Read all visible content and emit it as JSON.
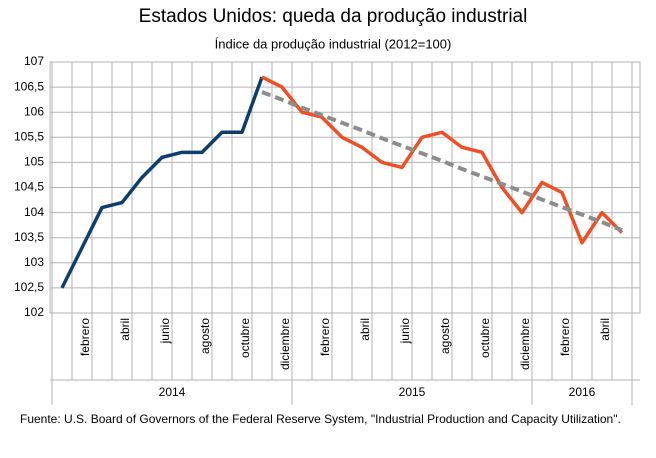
{
  "chart_data": {
    "type": "line",
    "title": "Estados Unidos: queda da produção industrial",
    "subtitle": "Índice da produção industrial   (2012=100)",
    "source": "Fuente: U.S. Board of Governors of the Federal Reserve System, \"Industrial Production and Capacity Utilization\".",
    "categories": [
      null,
      "febrero",
      null,
      "abril",
      null,
      "junio",
      null,
      "agosto",
      null,
      "octubre",
      null,
      "diciembre",
      null,
      "febrero",
      null,
      "abril",
      null,
      "junio",
      null,
      "agosto",
      null,
      "octubre",
      null,
      "diciembre",
      null,
      "febrero",
      null,
      "abril",
      null
    ],
    "year_groups": [
      {
        "label": "2014",
        "months": 12
      },
      {
        "label": "2015",
        "months": 12
      },
      {
        "label": "2016",
        "months": 5
      }
    ],
    "series": [
      {
        "color": "#0d3f6e",
        "style": "solid",
        "values": [
          102.5,
          103.3,
          104.1,
          104.2,
          104.7,
          105.1,
          105.2,
          105.2,
          105.6,
          105.6,
          106.7,
          null,
          null,
          null,
          null,
          null,
          null,
          null,
          null,
          null,
          null,
          null,
          null,
          null,
          null,
          null,
          null,
          null,
          null
        ]
      },
      {
        "color": "#f04e23",
        "style": "solid",
        "values": [
          null,
          null,
          null,
          null,
          null,
          null,
          null,
          null,
          null,
          null,
          106.7,
          106.5,
          106.0,
          105.9,
          105.5,
          105.3,
          105.0,
          104.9,
          105.5,
          105.6,
          105.3,
          105.2,
          104.5,
          104.0,
          104.6,
          104.4,
          103.4,
          104.0,
          103.6
        ]
      },
      {
        "color": "#8c8c8c",
        "style": "dashed",
        "values": [
          null,
          null,
          null,
          null,
          null,
          null,
          null,
          null,
          null,
          null,
          106.4,
          106.25,
          106.09,
          105.94,
          105.79,
          105.64,
          105.48,
          105.33,
          105.18,
          105.03,
          104.87,
          104.72,
          104.57,
          104.42,
          104.26,
          104.11,
          103.96,
          103.81,
          103.65
        ]
      }
    ],
    "ylim": [
      102,
      107
    ],
    "yticks": [
      102,
      {
        "value": 102.5,
        "label": "102,5"
      },
      103,
      {
        "value": 103.5,
        "label": "103,5"
      },
      104,
      {
        "value": 104.5,
        "label": "104,5"
      },
      105,
      {
        "value": 105.5,
        "label": "105,5"
      },
      106,
      {
        "value": 106.5,
        "label": "106,5"
      },
      107
    ],
    "grid": true
  }
}
